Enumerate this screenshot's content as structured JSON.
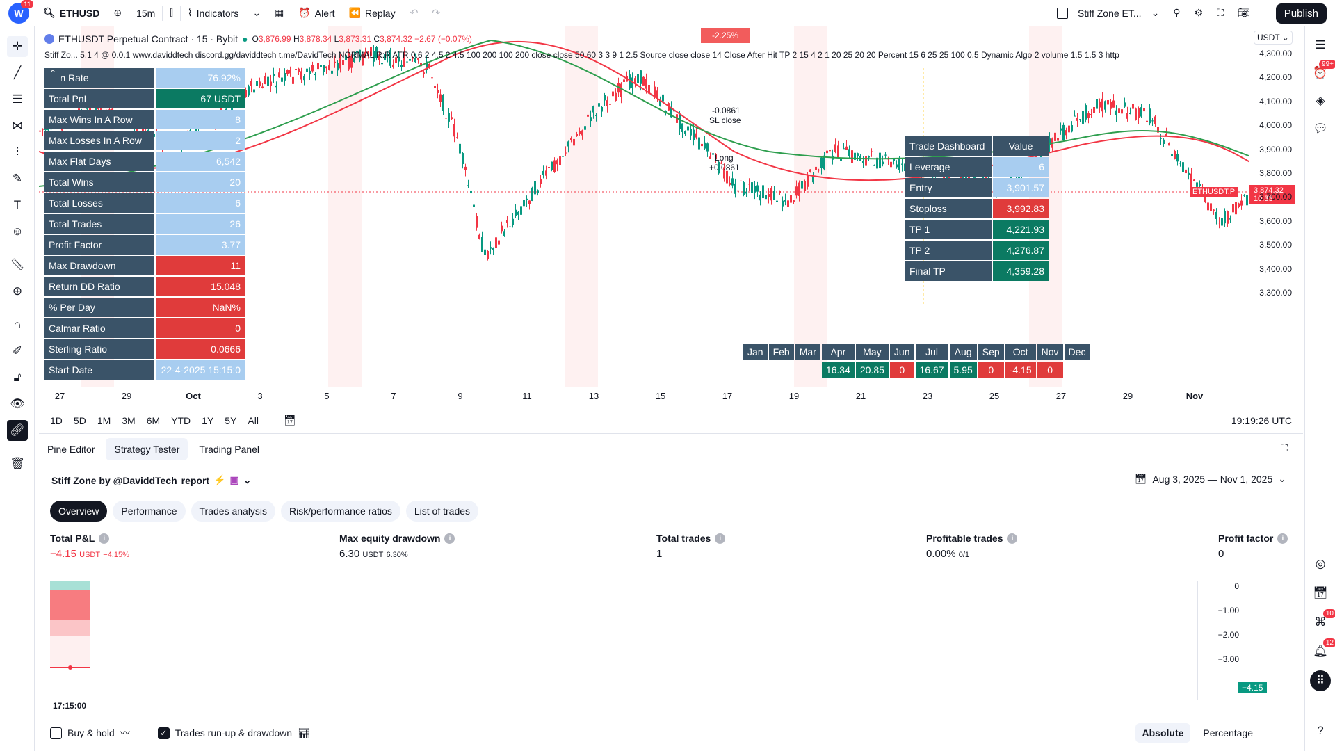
{
  "topbar": {
    "badge": "11",
    "symbol": "ETHUSD",
    "interval": "15m",
    "indicators": "Indicators",
    "alert": "Alert",
    "replay": "Replay",
    "layout_name": "Stiff Zone ET...",
    "publish": "Publish"
  },
  "legend": {
    "title": "ETHUSDT Perpetual Contract · 15 · Bybit",
    "open_label": "O",
    "open": "3,876.99",
    "high_label": "H",
    "high": "3,878.34",
    "low_label": "L",
    "low": "3,873.31",
    "close_label": "C",
    "close": "3,874.32",
    "change": "−2.67 (−0.07%)",
    "indicator": "Stiff Zo... 5.1 4 @ 0.0.1 www.daviddtech discord.gg/daviddtech t.me/DavidTech NORMAL R:R ATR 0.6 2 4.5 2 4.5 100 200 100 200 close close 50 60 3 3 9 1 2.5 Source close close 14 Close After Hit TP 2 15 4 2 1 20 25 20 20 Percent 15 6 25 25 100 0.5 Dynamic Algo 2 volume 1.5 1.5 3 http"
  },
  "stats_table": [
    {
      "k": "Win Rate",
      "v": "76.92%",
      "c": "l"
    },
    {
      "k": "Total PnL",
      "v": "67 USDT",
      "c": "g"
    },
    {
      "k": "Max Wins In A Row",
      "v": "8",
      "c": "l"
    },
    {
      "k": "Max Losses In A Row",
      "v": "2",
      "c": "l"
    },
    {
      "k": "Max Flat Days",
      "v": "6,542",
      "c": "l"
    },
    {
      "k": "Total Wins",
      "v": "20",
      "c": "l"
    },
    {
      "k": "Total Losses",
      "v": "6",
      "c": "l"
    },
    {
      "k": "Total Trades",
      "v": "26",
      "c": "l"
    },
    {
      "k": "Profit Factor",
      "v": "3.77",
      "c": "l"
    },
    {
      "k": "Max Drawdown",
      "v": "11",
      "c": "r"
    },
    {
      "k": "Return DD Ratio",
      "v": "15.048",
      "c": "r"
    },
    {
      "k": "% Per Day",
      "v": "NaN%",
      "c": "r"
    },
    {
      "k": "Calmar Ratio",
      "v": "0",
      "c": "r"
    },
    {
      "k": "Sterling Ratio",
      "v": "0.0666",
      "c": "r"
    },
    {
      "k": "Start Date",
      "v": "22-4-2025 15:15:0",
      "c": "l"
    }
  ],
  "trade_dashboard": {
    "header_k": "Trade Dashboard",
    "header_v": "Value",
    "rows": [
      {
        "k": "Leverage",
        "v": "6",
        "c": "l"
      },
      {
        "k": "Entry",
        "v": "3,901.57",
        "c": "l"
      },
      {
        "k": "Stoploss",
        "v": "3,992.83",
        "c": "r"
      },
      {
        "k": "TP 1",
        "v": "4,221.93",
        "c": "g"
      },
      {
        "k": "TP 2",
        "v": "4,276.87",
        "c": "g"
      },
      {
        "k": "Final TP",
        "v": "4,359.28",
        "c": "g"
      }
    ]
  },
  "monthly": {
    "months": [
      "Jan",
      "Feb",
      "Mar",
      "Apr",
      "May",
      "Jun",
      "Jul",
      "Aug",
      "Sep",
      "Oct",
      "Nov",
      "Dec"
    ],
    "values": [
      "",
      "",
      "",
      "16.34",
      "20.85",
      "0",
      "16.67",
      "5.95",
      "0",
      "-4.15",
      "0",
      ""
    ],
    "colors": [
      "",
      "",
      "",
      "g",
      "g",
      "r",
      "g",
      "g",
      "r",
      "r",
      "r",
      ""
    ]
  },
  "annotations": {
    "pct": "-2.25%",
    "sl_val": "-0.0861",
    "sl_text": "SL close",
    "long_text": "Long",
    "long_val": "+0.0861"
  },
  "price_axis": {
    "currency": "USDT",
    "ticks": [
      "4,300.00",
      "4,200.00",
      "4,100.00",
      "4,000.00",
      "3,900.00",
      "3,800.00",
      "3,700.00",
      "3,600.00",
      "3,500.00",
      "3,400.00",
      "3,300.00"
    ],
    "current_symbol": "ETHUSDT.P",
    "current_price": "3,874.32",
    "countdown": "10:33"
  },
  "time_axis": [
    "27",
    "29",
    "Oct",
    "3",
    "5",
    "7",
    "9",
    "11",
    "13",
    "15",
    "17",
    "19",
    "21",
    "23",
    "25",
    "27",
    "29",
    "Nov"
  ],
  "range_bar": {
    "ranges": [
      "1D",
      "5D",
      "1M",
      "3M",
      "6M",
      "YTD",
      "1Y",
      "5Y",
      "All"
    ],
    "clock": "19:19:26 UTC"
  },
  "panel_tabs": [
    "Pine Editor",
    "Strategy Tester",
    "Trading Panel"
  ],
  "strategy": {
    "title": "Stiff Zone by @DaviddTech",
    "report": "report",
    "date_range": "Aug 3, 2025 — Nov 1, 2025"
  },
  "report_tabs": [
    "Overview",
    "Performance",
    "Trades analysis",
    "Risk/performance ratios",
    "List of trades"
  ],
  "metrics": [
    {
      "label": "Total P&L",
      "value": "−4.15",
      "unit": "USDT",
      "extra": "−4.15%",
      "neg": true
    },
    {
      "label": "Max equity drawdown",
      "value": "6.30",
      "unit": "USDT",
      "extra": "6.30%",
      "neg": false
    },
    {
      "label": "Total trades",
      "value": "1",
      "unit": "",
      "extra": "",
      "neg": false
    },
    {
      "label": "Profitable trades",
      "value": "0.00%",
      "unit": "0/1",
      "extra": "",
      "neg": false
    },
    {
      "label": "Profit factor",
      "value": "0",
      "unit": "",
      "extra": "",
      "neg": false
    }
  ],
  "equity": {
    "time": "17:15:00",
    "axis": [
      "0",
      "−1.00",
      "−2.00",
      "−3.00"
    ],
    "last": "−4.15"
  },
  "bottom": {
    "buy_hold": "Buy & hold",
    "runup": "Trades run-up & drawdown",
    "absolute": "Absolute",
    "percentage": "Percentage"
  },
  "rightbar": {
    "b1": "99+",
    "b2": "10",
    "b3": "12"
  }
}
